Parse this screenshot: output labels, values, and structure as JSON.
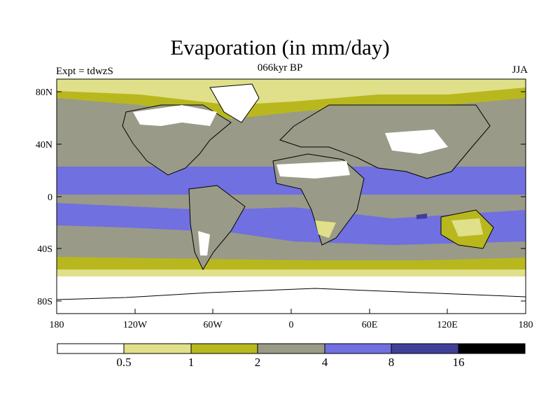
{
  "title": "Evaporation (in mm/day)",
  "left_label": "Expt = tdwzS",
  "center_label": "066kyr BP",
  "right_label": "JJA",
  "lat_ticks": [
    "80N",
    "40N",
    "0",
    "40S",
    "80S"
  ],
  "lon_ticks": [
    "180",
    "120W",
    "60W",
    "0",
    "60E",
    "120E",
    "180"
  ],
  "colorbar": {
    "levels": [
      "0.5",
      "1",
      "2",
      "4",
      "8",
      "16"
    ],
    "colors": [
      "#ffffff",
      "#e0e08a",
      "#b8b81e",
      "#9a9a88",
      "#7070e0",
      "#404098",
      "#000000"
    ]
  },
  "map": {
    "lat_range": [
      -90,
      90
    ],
    "lon_range": [
      -180,
      180
    ],
    "field_colors": {
      "lt05": "#ffffff",
      "c05_1": "#e0e08a",
      "c1_2": "#b8b81e",
      "c2_4": "#9a9a88",
      "c4_8": "#7070e0",
      "c8_16": "#404098"
    }
  }
}
